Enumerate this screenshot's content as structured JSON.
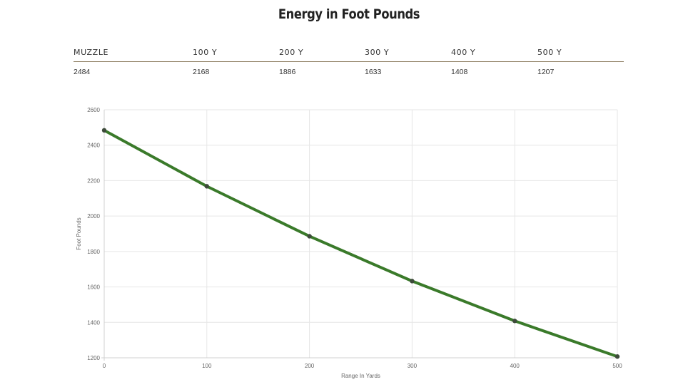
{
  "title": "Energy in Foot Pounds",
  "table": {
    "headers": [
      "MUZZLE",
      "100 Y",
      "200 Y",
      "300 Y",
      "400 Y",
      "500 Y"
    ],
    "values": [
      "2484",
      "2168",
      "1886",
      "1633",
      "1408",
      "1207"
    ]
  },
  "chart_data": {
    "type": "line",
    "x": [
      0,
      100,
      200,
      300,
      400,
      500
    ],
    "series": [
      {
        "values": [
          2484,
          2168,
          1886,
          1633,
          1408,
          1207
        ]
      }
    ],
    "xlabel": "Range In Yards",
    "ylabel": "Foot Pounds",
    "xlim": [
      0,
      500
    ],
    "ylim": [
      1200,
      2600
    ],
    "xticks": [
      0,
      100,
      200,
      300,
      400,
      500
    ],
    "yticks": [
      1200,
      1400,
      1600,
      1800,
      2000,
      2200,
      2400,
      2600
    ],
    "grid": true,
    "line_color": "#3a7a2a",
    "marker_color": "#3d4a3a",
    "grid_color": "#e6e6e6"
  }
}
